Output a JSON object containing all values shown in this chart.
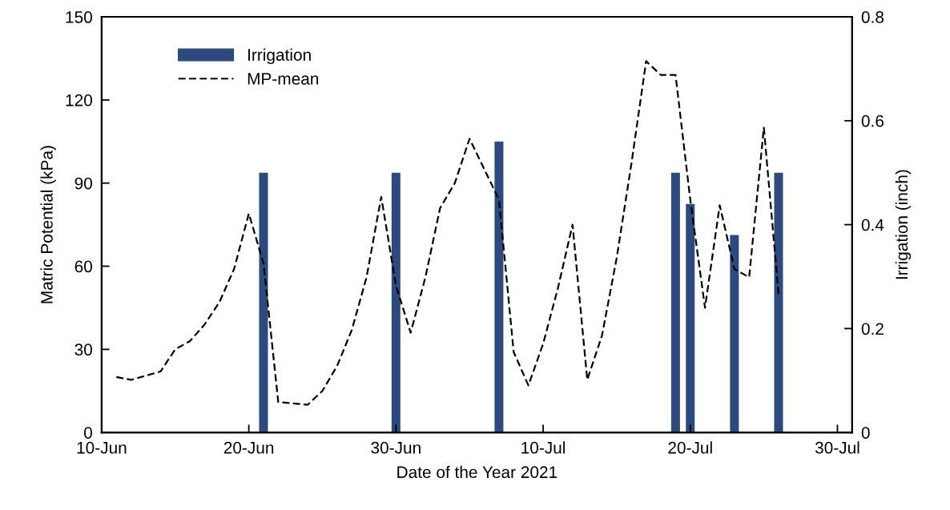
{
  "chart_data": {
    "type": "line",
    "xlabel": "Date of the Year 2021",
    "ylabel": "Matric Potential (kPa)",
    "y2label": "Irrigation (inch)",
    "series": [
      {
        "name": "Irrigation",
        "type": "bar",
        "axis": "y2",
        "color": "#2e4a7d",
        "x": [
          "2021-06-21",
          "2021-06-30",
          "2021-07-07",
          "2021-07-19",
          "2021-07-20",
          "2021-07-23",
          "2021-07-26"
        ],
        "values": [
          0.5,
          0.5,
          0.56,
          0.5,
          0.44,
          0.38,
          0.5
        ]
      },
      {
        "name": "MP-mean",
        "axis": "y",
        "color": "#000000",
        "line_style": "dashed",
        "x": [
          "2021-06-11",
          "2021-06-12",
          "2021-06-14",
          "2021-06-15",
          "2021-06-16",
          "2021-06-17",
          "2021-06-18",
          "2021-06-19",
          "2021-06-20",
          "2021-06-21",
          "2021-06-22",
          "2021-06-24",
          "2021-06-25",
          "2021-06-26",
          "2021-06-27",
          "2021-06-28",
          "2021-06-29",
          "2021-06-30",
          "2021-07-01",
          "2021-07-02",
          "2021-07-03",
          "2021-07-04",
          "2021-07-05",
          "2021-07-07",
          "2021-07-08",
          "2021-07-09",
          "2021-07-10",
          "2021-07-11",
          "2021-07-12",
          "2021-07-13",
          "2021-07-14",
          "2021-07-15",
          "2021-07-16",
          "2021-07-17",
          "2021-07-18",
          "2021-07-19",
          "2021-07-20",
          "2021-07-21",
          "2021-07-22",
          "2021-07-23",
          "2021-07-24",
          "2021-07-25",
          "2021-07-26"
        ],
        "values": [
          20,
          19,
          22,
          30,
          33,
          39,
          47,
          59,
          79,
          61,
          11,
          10,
          15,
          24,
          37,
          56,
          85,
          53,
          36,
          56,
          81,
          90,
          106,
          84,
          29,
          17,
          32,
          52,
          75,
          19,
          35,
          63,
          97,
          134,
          129,
          129,
          84,
          45,
          82,
          59,
          56,
          110,
          50
        ]
      }
    ],
    "xlim": [
      "2021-06-10",
      "2021-07-31"
    ],
    "xticks": [
      {
        "value": "2021-06-10",
        "label": "10-Jun"
      },
      {
        "value": "2021-06-20",
        "label": "20-Jun"
      },
      {
        "value": "2021-06-30",
        "label": "30-Jun"
      },
      {
        "value": "2021-07-10",
        "label": "10-Jul"
      },
      {
        "value": "2021-07-20",
        "label": "20-Jul"
      },
      {
        "value": "2021-07-30",
        "label": "30-Jul"
      }
    ],
    "ylim": [
      0,
      150
    ],
    "yticks": [
      0,
      30,
      60,
      90,
      120,
      150
    ],
    "y2lim": [
      0,
      0.8
    ],
    "y2ticks": [
      0,
      0.2,
      0.4,
      0.6,
      0.8
    ],
    "grid": false,
    "legend": "top left",
    "marker": "none"
  }
}
